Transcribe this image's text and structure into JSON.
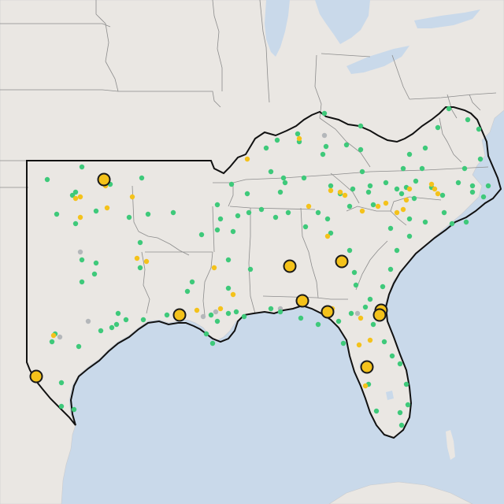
{
  "map": {
    "colors": {
      "water": "#c9d9ea",
      "land": "#eae7e3",
      "state_border": "#8c8c8c",
      "region_outline": "#111111",
      "marker_green": "#3ec97a",
      "marker_yellow": "#f4c21b",
      "marker_gray": "#b4b7ba",
      "large_marker_fill": "#f4c21b",
      "large_marker_stroke": "#1a1a1a"
    },
    "legend": null,
    "labels": []
  }
}
